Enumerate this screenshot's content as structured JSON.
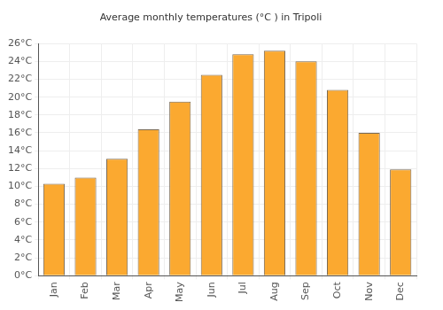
{
  "chart_data": {
    "type": "bar",
    "title": "Average monthly temperatures (°C ) in Tripoli",
    "categories": [
      "Jan",
      "Feb",
      "Mar",
      "Apr",
      "May",
      "Jun",
      "Jul",
      "Aug",
      "Sep",
      "Oct",
      "Nov",
      "Dec"
    ],
    "values": [
      10.3,
      11.0,
      13.1,
      16.4,
      19.5,
      22.5,
      24.8,
      25.2,
      24.0,
      20.8,
      16.0,
      11.9
    ],
    "color": "#fba930",
    "ylim": [
      0,
      26
    ],
    "yticks": [
      {
        "value": 0,
        "label": "0°C"
      },
      {
        "value": 2,
        "label": "2°C"
      },
      {
        "value": 4,
        "label": "4°C"
      },
      {
        "value": 6,
        "label": "6°C"
      },
      {
        "value": 8,
        "label": "8°C"
      },
      {
        "value": 10,
        "label": "10°C"
      },
      {
        "value": 12,
        "label": "12°C"
      },
      {
        "value": 14,
        "label": "14°C"
      },
      {
        "value": 16,
        "label": "16°C"
      },
      {
        "value": 18,
        "label": "18°C"
      },
      {
        "value": 20,
        "label": "20°C"
      },
      {
        "value": 22,
        "label": "22°C"
      },
      {
        "value": 24,
        "label": "24°C"
      },
      {
        "value": 26,
        "label": "26°C"
      }
    ],
    "grid": true
  }
}
